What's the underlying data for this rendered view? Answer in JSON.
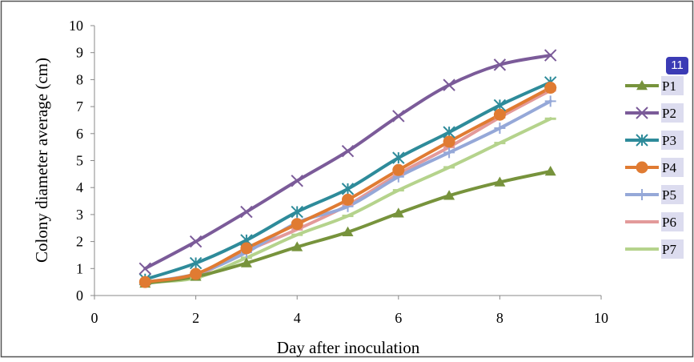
{
  "badge": "11",
  "chart_data": {
    "type": "line",
    "title": "",
    "xlabel": "Day after inoculation",
    "ylabel": "Colony diameter average (cm)",
    "xlim": [
      0,
      10
    ],
    "ylim": [
      0,
      10
    ],
    "xticks": [
      0,
      2,
      4,
      6,
      8,
      10
    ],
    "yticks": [
      0,
      1,
      2,
      3,
      4,
      5,
      6,
      7,
      8,
      9,
      10
    ],
    "grid": false,
    "legend_position": "right",
    "x": [
      1,
      2,
      3,
      4,
      5,
      6,
      7,
      8,
      9
    ],
    "series": [
      {
        "name": "P1",
        "color": "#77933c",
        "marker": "triangle",
        "values": [
          0.45,
          0.7,
          1.2,
          1.8,
          2.35,
          3.05,
          3.7,
          4.2,
          4.6
        ]
      },
      {
        "name": "P2",
        "color": "#7b5b99",
        "marker": "x",
        "values": [
          1.0,
          2.0,
          3.1,
          4.25,
          5.35,
          6.65,
          7.8,
          8.55,
          8.9
        ]
      },
      {
        "name": "P3",
        "color": "#2e8b9a",
        "marker": "star",
        "values": [
          0.6,
          1.2,
          2.05,
          3.1,
          3.95,
          5.1,
          6.05,
          7.05,
          7.9
        ]
      },
      {
        "name": "P4",
        "color": "#e07b32",
        "marker": "circle",
        "values": [
          0.5,
          0.8,
          1.75,
          2.65,
          3.55,
          4.65,
          5.7,
          6.7,
          7.7
        ]
      },
      {
        "name": "P5",
        "color": "#95a8d8",
        "marker": "plus",
        "values": [
          0.5,
          0.8,
          1.6,
          2.7,
          3.3,
          4.4,
          5.3,
          6.2,
          7.2
        ]
      },
      {
        "name": "P6",
        "color": "#e39a9a",
        "marker": "dash",
        "values": [
          0.5,
          0.75,
          1.65,
          2.45,
          3.35,
          4.5,
          5.5,
          6.6,
          7.6
        ]
      },
      {
        "name": "P7",
        "color": "#b5d38c",
        "marker": "dash",
        "values": [
          0.5,
          0.65,
          1.4,
          2.25,
          2.95,
          3.9,
          4.75,
          5.65,
          6.55
        ]
      }
    ]
  }
}
